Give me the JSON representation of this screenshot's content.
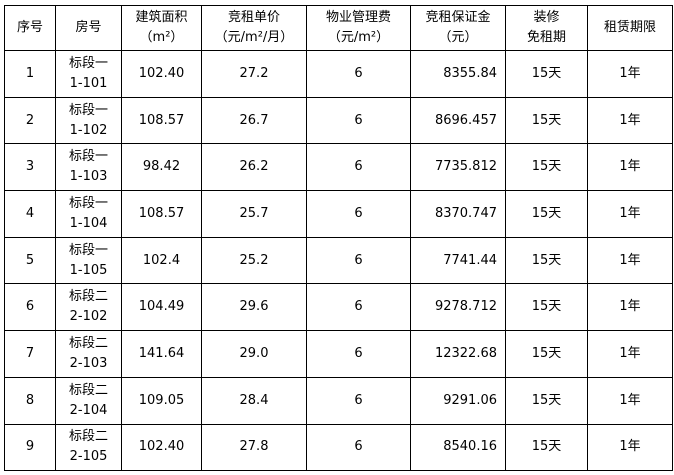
{
  "headers": [
    {
      "line1": "序号",
      "line2": ""
    },
    {
      "line1": "房号",
      "line2": ""
    },
    {
      "line1": "建筑面积",
      "line2": "（m²）"
    },
    {
      "line1": "竞租单价",
      "line2": "（元/m²/月）"
    },
    {
      "line1": "物业管理费",
      "line2": "（元/m²）"
    },
    {
      "line1": "竞租保证金",
      "line2": "（元）"
    },
    {
      "line1": "装修",
      "line2": "免租期"
    },
    {
      "line1": "租赁期限",
      "line2": ""
    }
  ],
  "rows": [
    {
      "no": "1",
      "section": "标段一",
      "room": "1-101",
      "area": "102.40",
      "price": "27.2",
      "fee": "6",
      "deposit": "8355.84",
      "free": "15天",
      "term": "1年"
    },
    {
      "no": "2",
      "section": "标段一",
      "room": "1-102",
      "area": "108.57",
      "price": "26.7",
      "fee": "6",
      "deposit": "8696.457",
      "free": "15天",
      "term": "1年"
    },
    {
      "no": "3",
      "section": "标段一",
      "room": "1-103",
      "area": "98.42",
      "price": "26.2",
      "fee": "6",
      "deposit": "7735.812",
      "free": "15天",
      "term": "1年"
    },
    {
      "no": "4",
      "section": "标段一",
      "room": "1-104",
      "area": "108.57",
      "price": "25.7",
      "fee": "6",
      "deposit": "8370.747",
      "free": "15天",
      "term": "1年"
    },
    {
      "no": "5",
      "section": "标段一",
      "room": "1-105",
      "area": "102.4",
      "price": "25.2",
      "fee": "6",
      "deposit": "7741.44",
      "free": "15天",
      "term": "1年"
    },
    {
      "no": "6",
      "section": "标段二",
      "room": "2-102",
      "area": "104.49",
      "price": "29.6",
      "fee": "6",
      "deposit": "9278.712",
      "free": "15天",
      "term": "1年"
    },
    {
      "no": "7",
      "section": "标段二",
      "room": "2-103",
      "area": "141.64",
      "price": "29.0",
      "fee": "6",
      "deposit": "12322.68",
      "free": "15天",
      "term": "1年"
    },
    {
      "no": "8",
      "section": "标段二",
      "room": "2-104",
      "area": "109.05",
      "price": "28.4",
      "fee": "6",
      "deposit": "9291.06",
      "free": "15天",
      "term": "1年"
    },
    {
      "no": "9",
      "section": "标段二",
      "room": "2-105",
      "area": "102.40",
      "price": "27.8",
      "fee": "6",
      "deposit": "8540.16",
      "free": "15天",
      "term": "1年"
    }
  ]
}
